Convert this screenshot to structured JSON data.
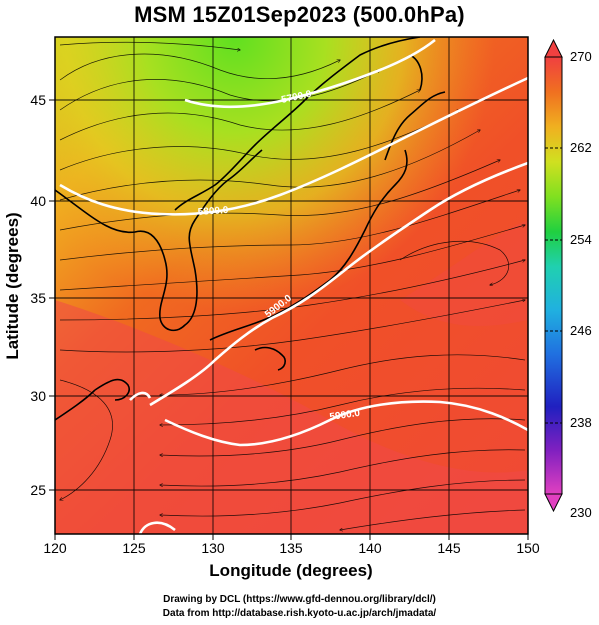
{
  "title": "MSM 15Z01Sep2023 (500.0hPa)",
  "chart_data": {
    "type": "heatmap",
    "xlabel": "Longitude (degrees)",
    "ylabel": "Latitude  (degrees)",
    "xlim": [
      120,
      150
    ],
    "ylim": [
      22.4,
      47.6
    ],
    "x_ticks": [
      "120",
      "125",
      "130",
      "135",
      "140",
      "145",
      "150"
    ],
    "y_ticks": [
      "25",
      "30",
      "35",
      "40",
      "45"
    ],
    "colorbar": {
      "min": 230,
      "max": 270,
      "ticks": [
        "270",
        "262",
        "254",
        "246",
        "238",
        "230"
      ],
      "colors": [
        "#e040c0",
        "#8020c0",
        "#2020c0",
        "#2060e0",
        "#20a0e0",
        "#20d0c0",
        "#20d040",
        "#80e020",
        "#d0e020",
        "#f0c020",
        "#f08020",
        "#f05020",
        "#f04040"
      ]
    },
    "contours": [
      {
        "label": "5700.0",
        "value": 5700
      },
      {
        "label": "5800.0",
        "value": 5800
      },
      {
        "label": "5900.0",
        "value": 5900
      },
      {
        "label": "5900.0",
        "value": 5900
      }
    ],
    "grid": true
  },
  "credits": {
    "line1": "Drawing by DCL (https://www.gfd-dennou.org/library/dcl/)",
    "line2": "Data from http://database.rish.kyoto-u.ac.jp/arch/jmadata/"
  }
}
